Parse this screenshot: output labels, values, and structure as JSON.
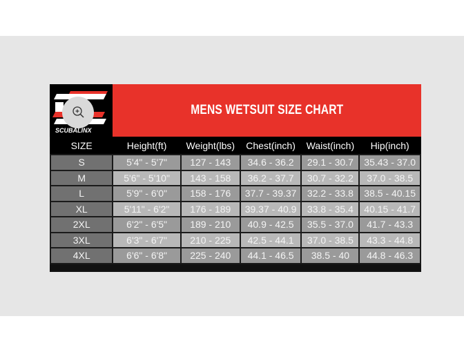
{
  "title": "MENS WETSUIT SIZE CHART",
  "logo_text": "SCUBALINX",
  "icons": {
    "zoom": "zoom-in-icon"
  },
  "colors": {
    "header_red": "#e8322a",
    "header_black": "#000000",
    "size_cell": "#717171",
    "cell_dark": "#9a9a9a",
    "cell_light": "#b8b8b8"
  },
  "columns": [
    "SIZE",
    "Height(ft)",
    "Weight(lbs)",
    "Chest(inch)",
    "Waist(inch)",
    "Hip(inch)"
  ],
  "rows": [
    [
      "S",
      "5'4\" - 5'7\"",
      "127 - 143",
      "34.6 - 36.2",
      "29.1 - 30.7",
      "35.43 - 37.0"
    ],
    [
      "M",
      "5'6\" - 5'10\"",
      "143 - 158",
      "36.2 - 37.7",
      "30.7 - 32.2",
      "37.0 - 38.5"
    ],
    [
      "L",
      "5'9\" - 6'0\"",
      "158 - 176",
      "37.7 - 39.37",
      "32.2 - 33.8",
      "38.5 - 40.15"
    ],
    [
      "XL",
      "5'11\" - 6'2\"",
      "176 - 189",
      "39.37 - 40.9",
      "33.8 - 35.4",
      "40.15 - 41.7"
    ],
    [
      "2XL",
      "6'2\" - 6'5\"",
      "189 - 210",
      "40.9 - 42.5",
      "35.5 - 37.0",
      "41.7 - 43.3"
    ],
    [
      "3XL",
      "6'3\" - 6'7\"",
      "210 - 225",
      "42.5 - 44.1",
      "37.0 - 38.5",
      "43.3 - 44.8"
    ],
    [
      "4XL",
      "6'6\" - 6'8\"",
      "225 - 240",
      "44.1 - 46.5",
      "38.5 - 40",
      "44.8 - 46.3"
    ]
  ]
}
